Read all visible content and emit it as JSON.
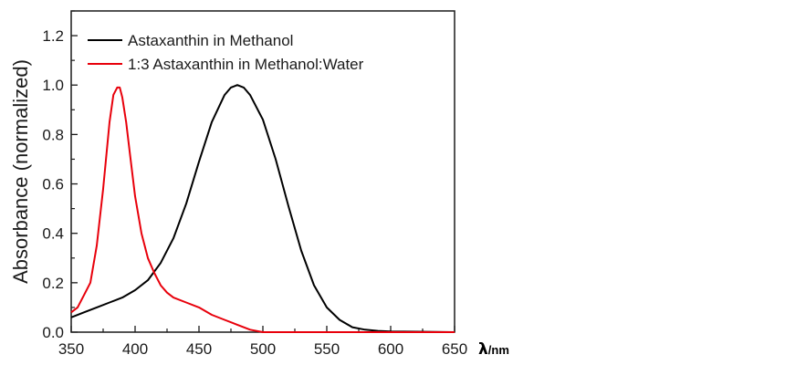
{
  "chart_data": {
    "type": "line",
    "title": "",
    "xlabel_symbol": "λ",
    "xlabel_unit": "/nm",
    "ylabel": "Absorbance (normalized)",
    "xlim": [
      350,
      650
    ],
    "ylim": [
      0,
      1.3
    ],
    "x_ticks": [
      350,
      400,
      450,
      500,
      550,
      600,
      650
    ],
    "x_tick_labels": [
      "350",
      "400",
      "450",
      "500",
      "550",
      "600",
      "650"
    ],
    "y_ticks": [
      0,
      0.2,
      0.4,
      0.6,
      0.8,
      1.0,
      1.2
    ],
    "y_tick_labels": [
      "0.0",
      "0.2",
      "0.4",
      "0.6",
      "0.8",
      "1.0",
      "1.2"
    ],
    "grid": false,
    "legend_position": "top-left",
    "series": [
      {
        "name": "Astaxanthin in Methanol",
        "color": "#000000",
        "x": [
          350,
          360,
          370,
          380,
          390,
          400,
          410,
          420,
          430,
          440,
          450,
          460,
          470,
          475,
          480,
          485,
          490,
          500,
          510,
          520,
          530,
          540,
          550,
          560,
          570,
          580,
          590,
          600,
          620,
          650
        ],
        "y": [
          0.06,
          0.08,
          0.1,
          0.12,
          0.14,
          0.17,
          0.21,
          0.28,
          0.38,
          0.52,
          0.69,
          0.85,
          0.96,
          0.99,
          1.0,
          0.99,
          0.96,
          0.86,
          0.7,
          0.51,
          0.33,
          0.19,
          0.1,
          0.05,
          0.02,
          0.01,
          0.005,
          0.003,
          0.002,
          0.0
        ]
      },
      {
        "name": "1:3 Astaxanthin in Methanol:Water",
        "color": "#e8000b",
        "x": [
          350,
          355,
          360,
          365,
          370,
          375,
          380,
          383,
          386,
          388,
          390,
          393,
          396,
          400,
          405,
          410,
          415,
          420,
          425,
          430,
          440,
          450,
          460,
          470,
          480,
          490,
          500,
          650
        ],
        "y": [
          0.08,
          0.1,
          0.15,
          0.2,
          0.35,
          0.58,
          0.85,
          0.96,
          0.99,
          0.99,
          0.95,
          0.85,
          0.72,
          0.55,
          0.4,
          0.3,
          0.24,
          0.19,
          0.16,
          0.14,
          0.12,
          0.1,
          0.07,
          0.05,
          0.03,
          0.01,
          0.0,
          0.0
        ]
      }
    ]
  }
}
